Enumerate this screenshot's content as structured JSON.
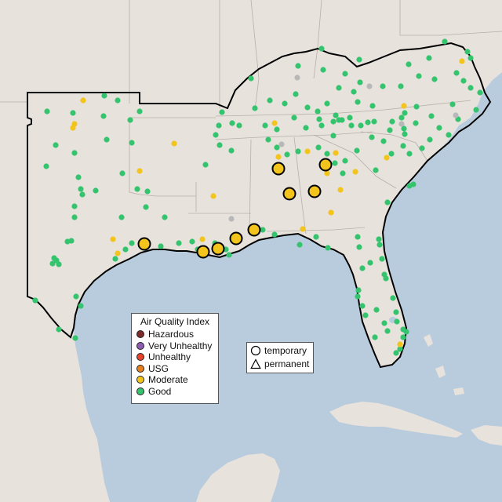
{
  "legend": {
    "title": "Air Quality Index",
    "categories": [
      {
        "label": "Hazardous",
        "color": "#7e2b2b"
      },
      {
        "label": "Very Unhealthy",
        "color": "#8f5bb0"
      },
      {
        "label": "Unhealthy",
        "color": "#e8432a"
      },
      {
        "label": "USG",
        "color": "#e87f1e"
      },
      {
        "label": "Moderate",
        "color": "#f2c41c"
      },
      {
        "label": "Good",
        "color": "#35c46e"
      }
    ],
    "types": [
      {
        "label": "temporary",
        "shape": "circle"
      },
      {
        "label": "permanent",
        "shape": "triangle"
      }
    ]
  },
  "colors": {
    "water": "#b9ccde",
    "land": "#e8e2dc",
    "no_data": "#b8b8b8",
    "boundary": "#000000"
  }
}
